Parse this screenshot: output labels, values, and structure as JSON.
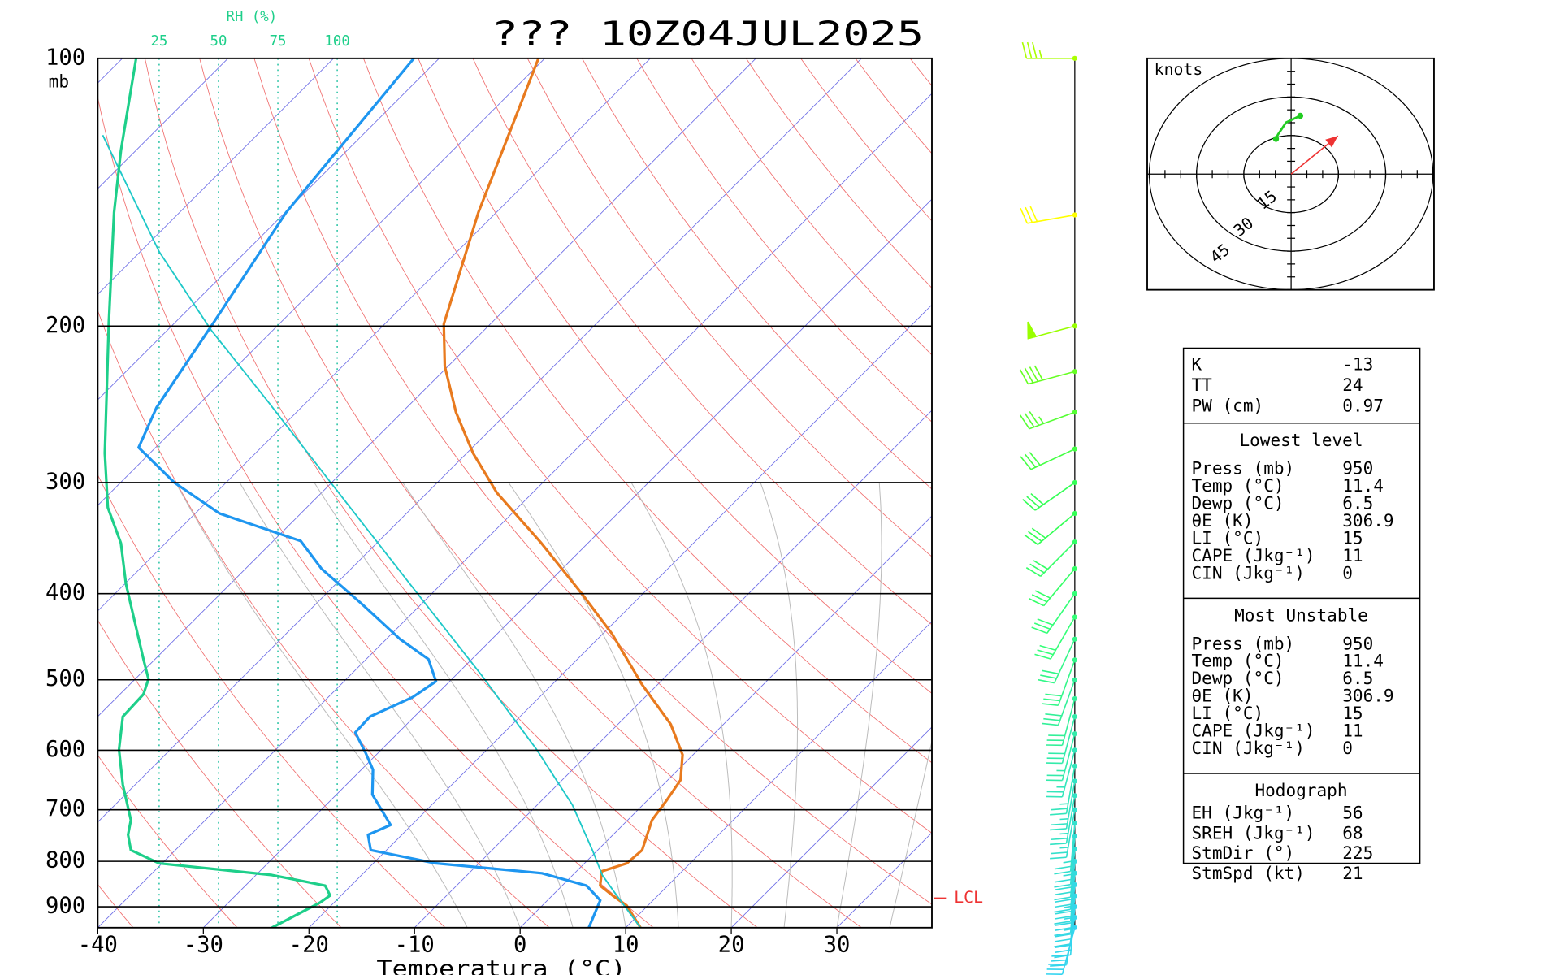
{
  "chart_data": {
    "type": "skewt",
    "title": "??? 10Z04JUL2025",
    "xlabel": "Temperatura (°C)",
    "ylabel": "mb",
    "xlim": [
      -40,
      39
    ],
    "ylim": [
      950,
      100
    ],
    "xticks": [
      -40,
      -30,
      -20,
      -10,
      0,
      10,
      20,
      30
    ],
    "yticks": [
      100,
      200,
      300,
      400,
      500,
      600,
      700,
      800,
      900
    ],
    "log_y": true,
    "rhlabel": "RH (%)",
    "rhlim": [
      0,
      100
    ],
    "rhticks": [
      25,
      50,
      75,
      100
    ],
    "lcl": {
      "label": "LCL",
      "pressure": 880
    },
    "series": [
      {
        "color": "#e87a1e",
        "pressure": [
          100,
          149,
          199,
          222,
          250,
          278,
          308,
          351,
          400,
          444,
          506,
          561,
          607,
          648,
          682,
          719,
          777,
          804,
          821,
          852,
          874,
          897,
          950
        ],
        "values": [
          -80.6,
          -71.7,
          -64.4,
          -60.3,
          -54.9,
          -49.4,
          -43.4,
          -34.4,
          -25.8,
          -19.1,
          -11.5,
          -5.0,
          -1.0,
          1.2,
          1.8,
          2.3,
          4.2,
          4.0,
          2.4,
          3.6,
          5.7,
          8.0,
          11.4
        ]
      },
      {
        "color": "#1e96f0",
        "pressure": [
          100,
          149,
          199,
          247,
          274,
          300,
          325,
          349,
          375,
          410,
          450,
          474,
          502,
          523,
          550,
          573,
          604,
          631,
          673,
          728,
          747,
          777,
          804,
          825,
          852,
          885,
          950
        ],
        "values": [
          -92.4,
          -89.9,
          -86.3,
          -83.7,
          -81.6,
          -74.9,
          -67.7,
          -57.4,
          -52.8,
          -45.8,
          -38.7,
          -34.1,
          -31.3,
          -32.0,
          -34.2,
          -34.1,
          -31.2,
          -28.9,
          -26.6,
          -22.0,
          -23.2,
          -21.5,
          -14.1,
          -3.1,
          2.3,
          5.0,
          6.5
        ]
      },
      {
        "color": "#1ec8c8",
        "pressure": [
          122,
          165,
          202,
          244,
          300,
          390,
          493,
          599,
          691,
          777,
          829,
          874,
          950
        ],
        "values": [
          -114.6,
          -98.2,
          -85.9,
          -73.5,
          -60.1,
          -43.0,
          -27.7,
          -15.3,
          -6.7,
          -0.5,
          2.8,
          6.1,
          11.4
        ]
      },
      {
        "color": "#1ecf8a",
        "axis": "rh",
        "pressure": [
          100,
          127,
          149,
          198,
          278,
          320,
          351,
          390,
          474,
          499,
          519,
          550,
          599,
          656,
          719,
          747,
          777,
          804,
          829,
          852,
          874,
          890,
          950
        ],
        "values": [
          15.3,
          8.9,
          6.0,
          3.8,
          2.1,
          3.4,
          8.9,
          11.0,
          18.4,
          20.5,
          18.4,
          9.7,
          8.1,
          9.7,
          13.1,
          11.9,
          13.1,
          25.0,
          72.5,
          94.9,
          97.0,
          92.8,
          72.5
        ]
      }
    ]
  },
  "winds": {
    "pressure": [
      100,
      150,
      200,
      225,
      250,
      275,
      300,
      325,
      350,
      375,
      400,
      425,
      450,
      475,
      500,
      525,
      550,
      575,
      600,
      625,
      650,
      675,
      700,
      725,
      750,
      775,
      800,
      825,
      850,
      875,
      900,
      925,
      950
    ],
    "direction": [
      270,
      260,
      255,
      255,
      250,
      245,
      235,
      230,
      225,
      220,
      215,
      210,
      205,
      200,
      200,
      195,
      195,
      195,
      195,
      190,
      190,
      190,
      190,
      185,
      185,
      185,
      185,
      185,
      185,
      185,
      185,
      190,
      195
    ],
    "speed": [
      35,
      30,
      50,
      40,
      35,
      30,
      30,
      30,
      30,
      30,
      30,
      30,
      30,
      30,
      30,
      30,
      30,
      25,
      25,
      25,
      25,
      25,
      25,
      25,
      25,
      30,
      30,
      35,
      35,
      35,
      30,
      30,
      30
    ],
    "color": [
      "#aaff00",
      "#ffff00",
      "#99ff00",
      "#66ff22",
      "#55ff33",
      "#44ff44",
      "#33ff55",
      "#33ff55",
      "#33ff66",
      "#33ff66",
      "#33ff77",
      "#33ff77",
      "#33f788",
      "#33f788",
      "#33f099",
      "#33f099",
      "#33ebaa",
      "#33ebaa",
      "#33e6bb",
      "#33e6bb",
      "#33e3c4",
      "#33e3c4",
      "#33e0cc",
      "#33e0cc",
      "#33ddd4",
      "#33ddd4",
      "#33dadc",
      "#33dadc",
      "#33d8e4",
      "#33d8e4",
      "#33d6ea",
      "#33d6ea",
      "#33d4f0"
    ]
  },
  "hodograph": {
    "label": "knots",
    "rings": [
      15,
      30,
      45
    ],
    "u": [
      2.9,
      -1.6,
      -4.2,
      -4.8
    ],
    "v": [
      22.7,
      20.1,
      15.3,
      13.7
    ],
    "color": "#22cc22",
    "storm_color": "#ee3333"
  },
  "indices": {
    "rows": [
      [
        "K",
        -13
      ],
      [
        "TT",
        24
      ],
      [
        "PW (cm)",
        0.97
      ]
    ],
    "sections": [
      {
        "title": "Lowest level",
        "rows": [
          [
            "Press (mb)",
            950
          ],
          [
            "Temp (°C)",
            11.4
          ],
          [
            "Dewp (°C)",
            6.5
          ],
          [
            "θE (K)",
            306.9
          ],
          [
            "LI (°C)",
            15
          ],
          [
            "CAPE (Jkg⁻¹)",
            11
          ],
          [
            "CIN (Jkg⁻¹)",
            0
          ]
        ]
      },
      {
        "title": "Most Unstable",
        "rows": [
          [
            "Press (mb)",
            950
          ],
          [
            "Temp (°C)",
            11.4
          ],
          [
            "Dewp (°C)",
            6.5
          ],
          [
            "θE (K)",
            306.9
          ],
          [
            "LI (°C)",
            15
          ],
          [
            "CAPE (Jkg⁻¹)",
            11
          ],
          [
            "CIN (Jkg⁻¹)",
            0
          ]
        ]
      },
      {
        "title": "Hodograph",
        "rows": [
          [
            "EH (Jkg⁻¹)",
            56
          ],
          [
            "SREH (Jkg⁻¹)",
            68
          ],
          [
            "StmDir (°)",
            225
          ],
          [
            "StmSpd (kt)",
            21
          ]
        ]
      }
    ]
  }
}
